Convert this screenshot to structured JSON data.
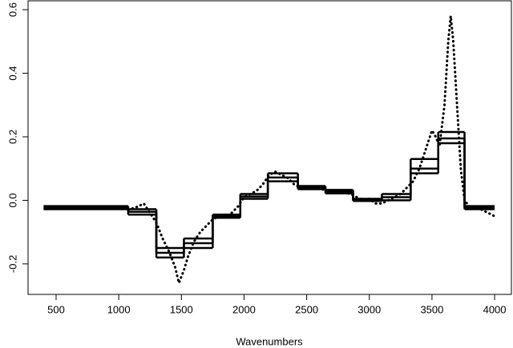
{
  "chart_data": {
    "type": "line",
    "xlabel": "Wavenumbers",
    "xlim": [
      276,
      4134
    ],
    "ylim": [
      -0.296,
      0.628
    ],
    "xticks": [
      500,
      1000,
      1500,
      2000,
      2500,
      3000,
      3500,
      4000
    ],
    "yticks": [
      {
        "value": -0.2,
        "label": "-0.2"
      },
      {
        "value": 0,
        "label": "0.0"
      },
      {
        "value": 0.2,
        "label": "0.2"
      },
      {
        "value": 0.4,
        "label": "0.4"
      },
      {
        "value": 0.6,
        "label": "0.6"
      }
    ],
    "step_edges": [
      400,
      1075,
      1300,
      1520,
      1750,
      1970,
      2190,
      2430,
      2650,
      2870,
      3100,
      3330,
      3550,
      3760,
      4000
    ],
    "steps": [
      {
        "color": "#000000",
        "values": [
          -0.018,
          -0.028,
          -0.15,
          -0.12,
          -0.045,
          0.02,
          0.085,
          0.045,
          0.033,
          0.005,
          0.02,
          0.13,
          0.215,
          -0.018
        ]
      },
      {
        "color": "#000000",
        "values": [
          -0.023,
          -0.036,
          -0.165,
          -0.135,
          -0.05,
          0.012,
          0.072,
          0.04,
          0.028,
          0.002,
          0.01,
          0.1,
          0.195,
          -0.023
        ]
      },
      {
        "color": "#000000",
        "values": [
          -0.028,
          -0.045,
          -0.18,
          -0.15,
          -0.055,
          0.005,
          0.06,
          0.035,
          0.022,
          -0.002,
          0.0,
          0.085,
          0.18,
          -0.028
        ]
      }
    ],
    "series": [
      {
        "color": "#000000",
        "x": [
          1075,
          1150,
          1200,
          1250,
          1300,
          1350,
          1400,
          1450,
          1480,
          1520,
          1550,
          1600,
          1650,
          1700,
          1750,
          1800,
          1850,
          1900,
          1950,
          2000,
          2050,
          2100,
          2150,
          2200,
          2250,
          2300,
          2350,
          2400,
          2450,
          2500,
          2550,
          2600,
          2650,
          2700,
          2750,
          2800,
          2850,
          2900,
          2950,
          3000,
          3050,
          3100,
          3150,
          3200,
          3250,
          3300,
          3350,
          3400,
          3450,
          3500,
          3530,
          3560,
          3600,
          3630,
          3650,
          3670,
          3700,
          3730,
          3760,
          3800,
          3850,
          3900,
          3950,
          4000
        ],
        "values": [
          -0.03,
          -0.02,
          -0.01,
          -0.04,
          -0.07,
          -0.12,
          -0.16,
          -0.21,
          -0.26,
          -0.22,
          -0.18,
          -0.13,
          -0.1,
          -0.08,
          -0.06,
          -0.05,
          -0.05,
          -0.04,
          -0.02,
          0.01,
          0.02,
          0.03,
          0.05,
          0.08,
          0.09,
          0.08,
          0.07,
          0.05,
          0.04,
          0.04,
          0.045,
          0.04,
          0.03,
          0.03,
          0.03,
          0.025,
          0.02,
          0.01,
          0.0,
          0.005,
          -0.01,
          -0.01,
          0.0,
          0.01,
          0.02,
          0.04,
          0.06,
          0.1,
          0.16,
          0.22,
          0.2,
          0.17,
          0.3,
          0.5,
          0.58,
          0.5,
          0.3,
          0.1,
          0.0,
          -0.02,
          -0.02,
          -0.03,
          -0.04,
          -0.05
        ]
      }
    ]
  }
}
